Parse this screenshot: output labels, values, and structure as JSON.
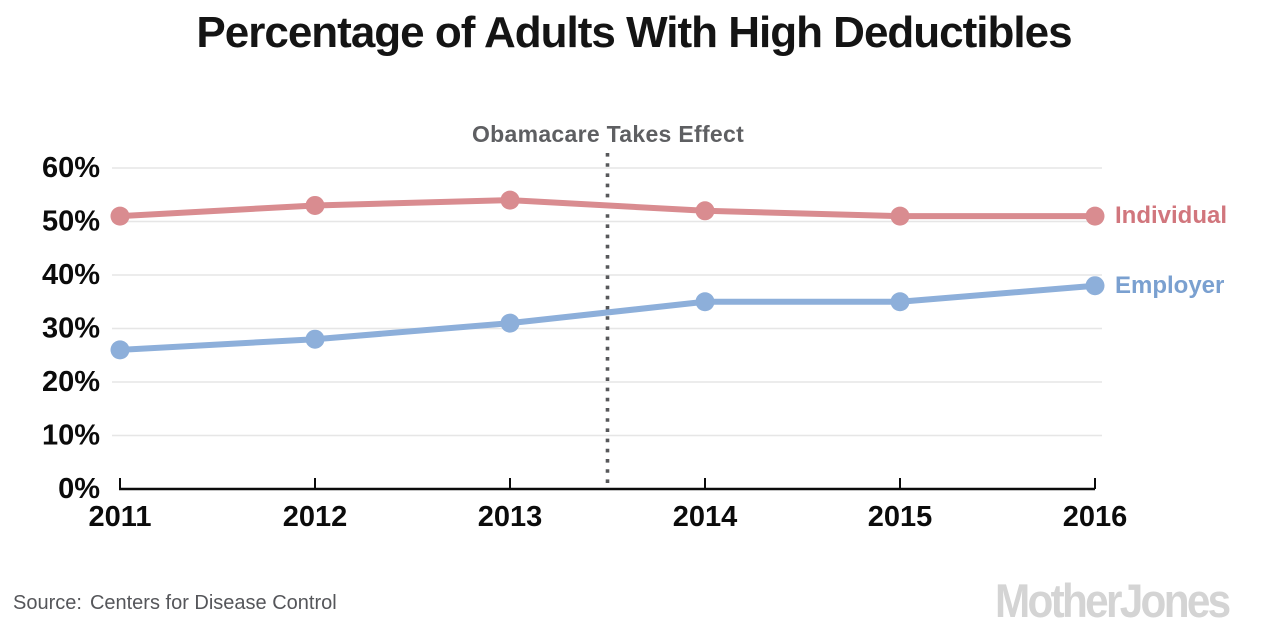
{
  "chart_data": {
    "type": "line",
    "title": "Percentage of Adults With High Deductibles",
    "xlabel": "",
    "ylabel": "",
    "categories": [
      "2011",
      "2012",
      "2013",
      "2014",
      "2015",
      "2016"
    ],
    "series": [
      {
        "name": "Individual",
        "values": [
          51,
          53,
          54,
          52,
          51,
          51
        ],
        "color": "#d98c90",
        "label_color": "#d1767d"
      },
      {
        "name": "Employer",
        "values": [
          26,
          28,
          31,
          35,
          35,
          38
        ],
        "color": "#8dafda",
        "label_color": "#7aa0d0"
      }
    ],
    "ylim": [
      0,
      60
    ],
    "ytick_step": 10,
    "ytick_suffix": "%",
    "grid": true,
    "legend_position": "right-end-labels",
    "annotation": {
      "label": "Obamacare Takes Effect",
      "x_index": 2.5,
      "line_style": "dotted",
      "line_color": "#57585a"
    }
  },
  "source": {
    "label": "Source:",
    "text": "Centers for Disease Control"
  },
  "logo_text": "MotherJones"
}
